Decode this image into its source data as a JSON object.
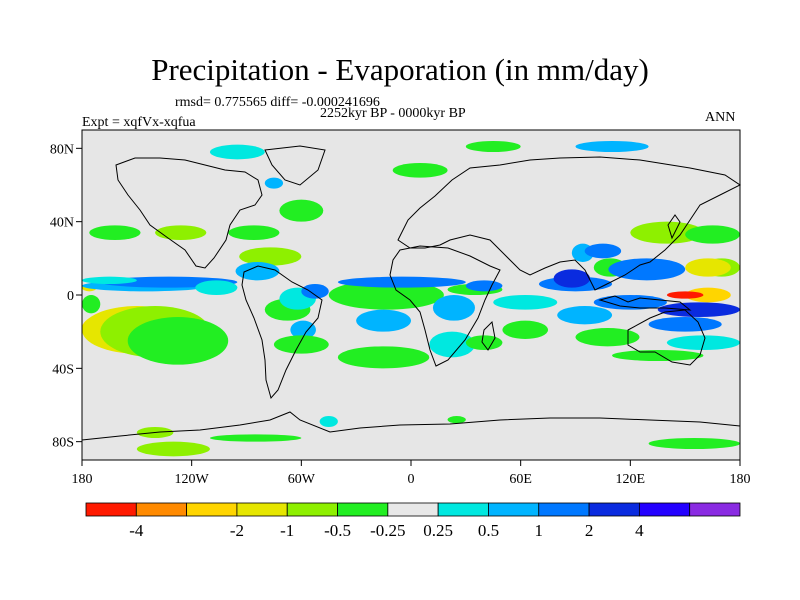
{
  "chart_data": {
    "type": "heatmap",
    "title": "Precipitation - Evaporation (in mm/day)",
    "stats_line": "rmsd= 0.775565 diff= -0.000241696",
    "period": "2252kyr BP - 0000kyr BP",
    "experiment": "Expt = xqfVx-xqfua",
    "season": "ANN",
    "x_range": [
      -180,
      180
    ],
    "y_range": [
      -90,
      90
    ],
    "x_ticks": [
      {
        "value": -180,
        "label": "180"
      },
      {
        "value": -120,
        "label": "120W"
      },
      {
        "value": -60,
        "label": "60W"
      },
      {
        "value": 0,
        "label": "0"
      },
      {
        "value": 60,
        "label": "60E"
      },
      {
        "value": 120,
        "label": "120E"
      },
      {
        "value": 180,
        "label": "180"
      }
    ],
    "y_ticks": [
      {
        "value": 80,
        "label": "80N"
      },
      {
        "value": 40,
        "label": "40N"
      },
      {
        "value": 0,
        "label": "0"
      },
      {
        "value": -40,
        "label": "40S"
      },
      {
        "value": -80,
        "label": "80S"
      }
    ],
    "colorbar": {
      "colors": [
        "#ff1a00",
        "#ff8a00",
        "#ffd500",
        "#e6e600",
        "#8ef000",
        "#22ee22",
        "#e8e8e8",
        "#00e8e0",
        "#00b4ff",
        "#0078ff",
        "#0a2bdf",
        "#2400ff",
        "#8a2be2"
      ],
      "labels": [
        "-4",
        "-2",
        "-1",
        "-0.5",
        "-0.25",
        "0.25",
        "0.5",
        "1",
        "2",
        "4"
      ],
      "label_boundaries": [
        1,
        3,
        4,
        5,
        6,
        7,
        8,
        9,
        10,
        11
      ]
    },
    "fields": [
      {
        "value_class": "-1",
        "lon_min": -180,
        "lon_max": -172,
        "lat_min": 2,
        "lat_max": 6
      },
      {
        "value_class": "-0.25",
        "lon_min": -180,
        "lon_max": -170,
        "lat_min": -10,
        "lat_max": 0
      },
      {
        "value_class": "-4",
        "lon_min": -178,
        "lon_max": -140,
        "lat_min": -24,
        "lat_max": -10
      },
      {
        "value_class": "-2",
        "lon_min": -180,
        "lon_max": -130,
        "lat_min": -28,
        "lat_max": -8
      },
      {
        "value_class": "-1",
        "lon_min": -180,
        "lon_max": -120,
        "lat_min": -32,
        "lat_max": -6
      },
      {
        "value_class": "-0.5",
        "lon_min": -170,
        "lon_max": -110,
        "lat_min": -34,
        "lat_max": -6
      },
      {
        "value_class": "-0.25",
        "lon_min": -155,
        "lon_max": -100,
        "lat_min": -38,
        "lat_max": -12
      },
      {
        "value_class": "0.5",
        "lon_min": -180,
        "lon_max": -110,
        "lat_min": 2,
        "lat_max": 8
      },
      {
        "value_class": "1",
        "lon_min": -170,
        "lon_max": -95,
        "lat_min": 4,
        "lat_max": 10
      },
      {
        "value_class": "0.25",
        "lon_min": -180,
        "lon_max": -150,
        "lat_min": 6,
        "lat_max": 10
      },
      {
        "value_class": "-0.25",
        "lon_min": -176,
        "lon_max": -148,
        "lat_min": 30,
        "lat_max": 38
      },
      {
        "value_class": "-0.5",
        "lon_min": -140,
        "lon_max": -112,
        "lat_min": 30,
        "lat_max": 38
      },
      {
        "value_class": "-0.25",
        "lon_min": -100,
        "lon_max": -72,
        "lat_min": 30,
        "lat_max": 38
      },
      {
        "value_class": "-0.25",
        "lon_min": -72,
        "lon_max": -48,
        "lat_min": 40,
        "lat_max": 52
      },
      {
        "value_class": "-0.5",
        "lon_min": -94,
        "lon_max": -60,
        "lat_min": 16,
        "lat_max": 26
      },
      {
        "value_class": "0.5",
        "lon_min": -96,
        "lon_max": -72,
        "lat_min": 8,
        "lat_max": 18
      },
      {
        "value_class": "0.25",
        "lon_min": -118,
        "lon_max": -95,
        "lat_min": 0,
        "lat_max": 8
      },
      {
        "value_class": "-0.25",
        "lon_min": -80,
        "lon_max": -55,
        "lat_min": -14,
        "lat_max": -2
      },
      {
        "value_class": "0.25",
        "lon_min": -72,
        "lon_max": -52,
        "lat_min": -8,
        "lat_max": 4
      },
      {
        "value_class": "1",
        "lon_min": -60,
        "lon_max": -45,
        "lat_min": -2,
        "lat_max": 6
      },
      {
        "value_class": "0.5",
        "lon_min": -66,
        "lon_max": -52,
        "lat_min": -24,
        "lat_max": -14
      },
      {
        "value_class": "-0.25",
        "lon_min": -75,
        "lon_max": -45,
        "lat_min": -32,
        "lat_max": -22
      },
      {
        "value_class": "-0.25",
        "lon_min": -40,
        "lon_max": 10,
        "lat_min": -40,
        "lat_max": -28
      },
      {
        "value_class": "-1",
        "lon_min": -40,
        "lon_max": 10,
        "lat_min": -6,
        "lat_max": 0
      },
      {
        "value_class": "-0.25",
        "lon_min": -45,
        "lon_max": 18,
        "lat_min": -8,
        "lat_max": 8
      },
      {
        "value_class": "1",
        "lon_min": -40,
        "lon_max": 30,
        "lat_min": 4,
        "lat_max": 10
      },
      {
        "value_class": "0.5",
        "lon_min": -30,
        "lon_max": 0,
        "lat_min": -20,
        "lat_max": -8
      },
      {
        "value_class": "0.25",
        "lon_min": 10,
        "lon_max": 35,
        "lat_min": -34,
        "lat_max": -20
      },
      {
        "value_class": "0.5",
        "lon_min": 12,
        "lon_max": 35,
        "lat_min": -14,
        "lat_max": 0
      },
      {
        "value_class": "-0.25",
        "lon_min": 20,
        "lon_max": 50,
        "lat_min": 0,
        "lat_max": 6
      },
      {
        "value_class": "1",
        "lon_min": 30,
        "lon_max": 50,
        "lat_min": 2,
        "lat_max": 8
      },
      {
        "value_class": "-0.25",
        "lon_min": 30,
        "lon_max": 50,
        "lat_min": -30,
        "lat_max": -22
      },
      {
        "value_class": "0.25",
        "lon_min": 45,
        "lon_max": 80,
        "lat_min": -8,
        "lat_max": 0
      },
      {
        "value_class": "-0.25",
        "lon_min": 50,
        "lon_max": 75,
        "lat_min": -24,
        "lat_max": -14
      },
      {
        "value_class": "1",
        "lon_min": 70,
        "lon_max": 110,
        "lat_min": 2,
        "lat_max": 10
      },
      {
        "value_class": "2",
        "lon_min": 78,
        "lon_max": 98,
        "lat_min": 4,
        "lat_max": 14
      },
      {
        "value_class": "0.5",
        "lon_min": 88,
        "lon_max": 100,
        "lat_min": 18,
        "lat_max": 28
      },
      {
        "value_class": "1",
        "lon_min": 95,
        "lon_max": 115,
        "lat_min": 20,
        "lat_max": 28
      },
      {
        "value_class": "-0.25",
        "lon_min": 100,
        "lon_max": 118,
        "lat_min": 10,
        "lat_max": 20
      },
      {
        "value_class": "2",
        "lon_min": 118,
        "lon_max": 140,
        "lat_min": 10,
        "lat_max": 18
      },
      {
        "value_class": "1",
        "lon_min": 108,
        "lon_max": 150,
        "lat_min": 8,
        "lat_max": 20
      },
      {
        "value_class": "-0.5",
        "lon_min": 120,
        "lon_max": 160,
        "lat_min": 28,
        "lat_max": 40
      },
      {
        "value_class": "-0.25",
        "lon_min": 150,
        "lon_max": 180,
        "lat_min": 28,
        "lat_max": 38
      },
      {
        "value_class": "-0.5",
        "lon_min": 160,
        "lon_max": 180,
        "lat_min": 10,
        "lat_max": 20
      },
      {
        "value_class": "-1",
        "lon_min": 150,
        "lon_max": 175,
        "lat_min": 10,
        "lat_max": 20
      },
      {
        "value_class": "-2",
        "lon_min": 150,
        "lon_max": 175,
        "lat_min": -4,
        "lat_max": 4
      },
      {
        "value_class": "-4",
        "lon_min": 140,
        "lon_max": 160,
        "lat_min": -2,
        "lat_max": 2
      },
      {
        "value_class": "1",
        "lon_min": 100,
        "lon_max": 140,
        "lat_min": -8,
        "lat_max": 0
      },
      {
        "value_class": "2",
        "lon_min": 135,
        "lon_max": 180,
        "lat_min": -12,
        "lat_max": -4
      },
      {
        "value_class": "1",
        "lon_min": 130,
        "lon_max": 170,
        "lat_min": -20,
        "lat_max": -12
      },
      {
        "value_class": "0.5",
        "lon_min": 80,
        "lon_max": 110,
        "lat_min": -16,
        "lat_max": -6
      },
      {
        "value_class": "-0.25",
        "lon_min": 90,
        "lon_max": 125,
        "lat_min": -28,
        "lat_max": -18
      },
      {
        "value_class": "0.25",
        "lon_min": 140,
        "lon_max": 180,
        "lat_min": -30,
        "lat_max": -22
      },
      {
        "value_class": "-0.25",
        "lon_min": 110,
        "lon_max": 160,
        "lat_min": -36,
        "lat_max": -30
      },
      {
        "value_class": "-0.25",
        "lon_min": -10,
        "lon_max": 20,
        "lat_min": 64,
        "lat_max": 72
      },
      {
        "value_class": "-0.25",
        "lon_min": 30,
        "lon_max": 60,
        "lat_min": 78,
        "lat_max": 84
      },
      {
        "value_class": "0.5",
        "lon_min": 90,
        "lon_max": 130,
        "lat_min": 78,
        "lat_max": 84
      },
      {
        "value_class": "0.25",
        "lon_min": -110,
        "lon_max": -80,
        "lat_min": 74,
        "lat_max": 82
      },
      {
        "value_class": "0.5",
        "lon_min": -80,
        "lon_max": -70,
        "lat_min": 58,
        "lat_max": 64
      },
      {
        "value_class": "-0.5",
        "lon_min": -150,
        "lon_max": -130,
        "lat_min": -78,
        "lat_max": -72
      },
      {
        "value_class": "0.25",
        "lon_min": -50,
        "lon_max": -40,
        "lat_min": -72,
        "lat_max": -66
      },
      {
        "value_class": "-0.5",
        "lon_min": -150,
        "lon_max": -110,
        "lat_min": -88,
        "lat_max": -80
      },
      {
        "value_class": "-0.25",
        "lon_min": -110,
        "lon_max": -60,
        "lat_min": -80,
        "lat_max": -76
      },
      {
        "value_class": "-0.25",
        "lon_min": 20,
        "lon_max": 30,
        "lat_min": -70,
        "lat_max": -66
      },
      {
        "value_class": "-0.25",
        "lon_min": 130,
        "lon_max": 180,
        "lat_min": -84,
        "lat_max": -78
      }
    ]
  }
}
